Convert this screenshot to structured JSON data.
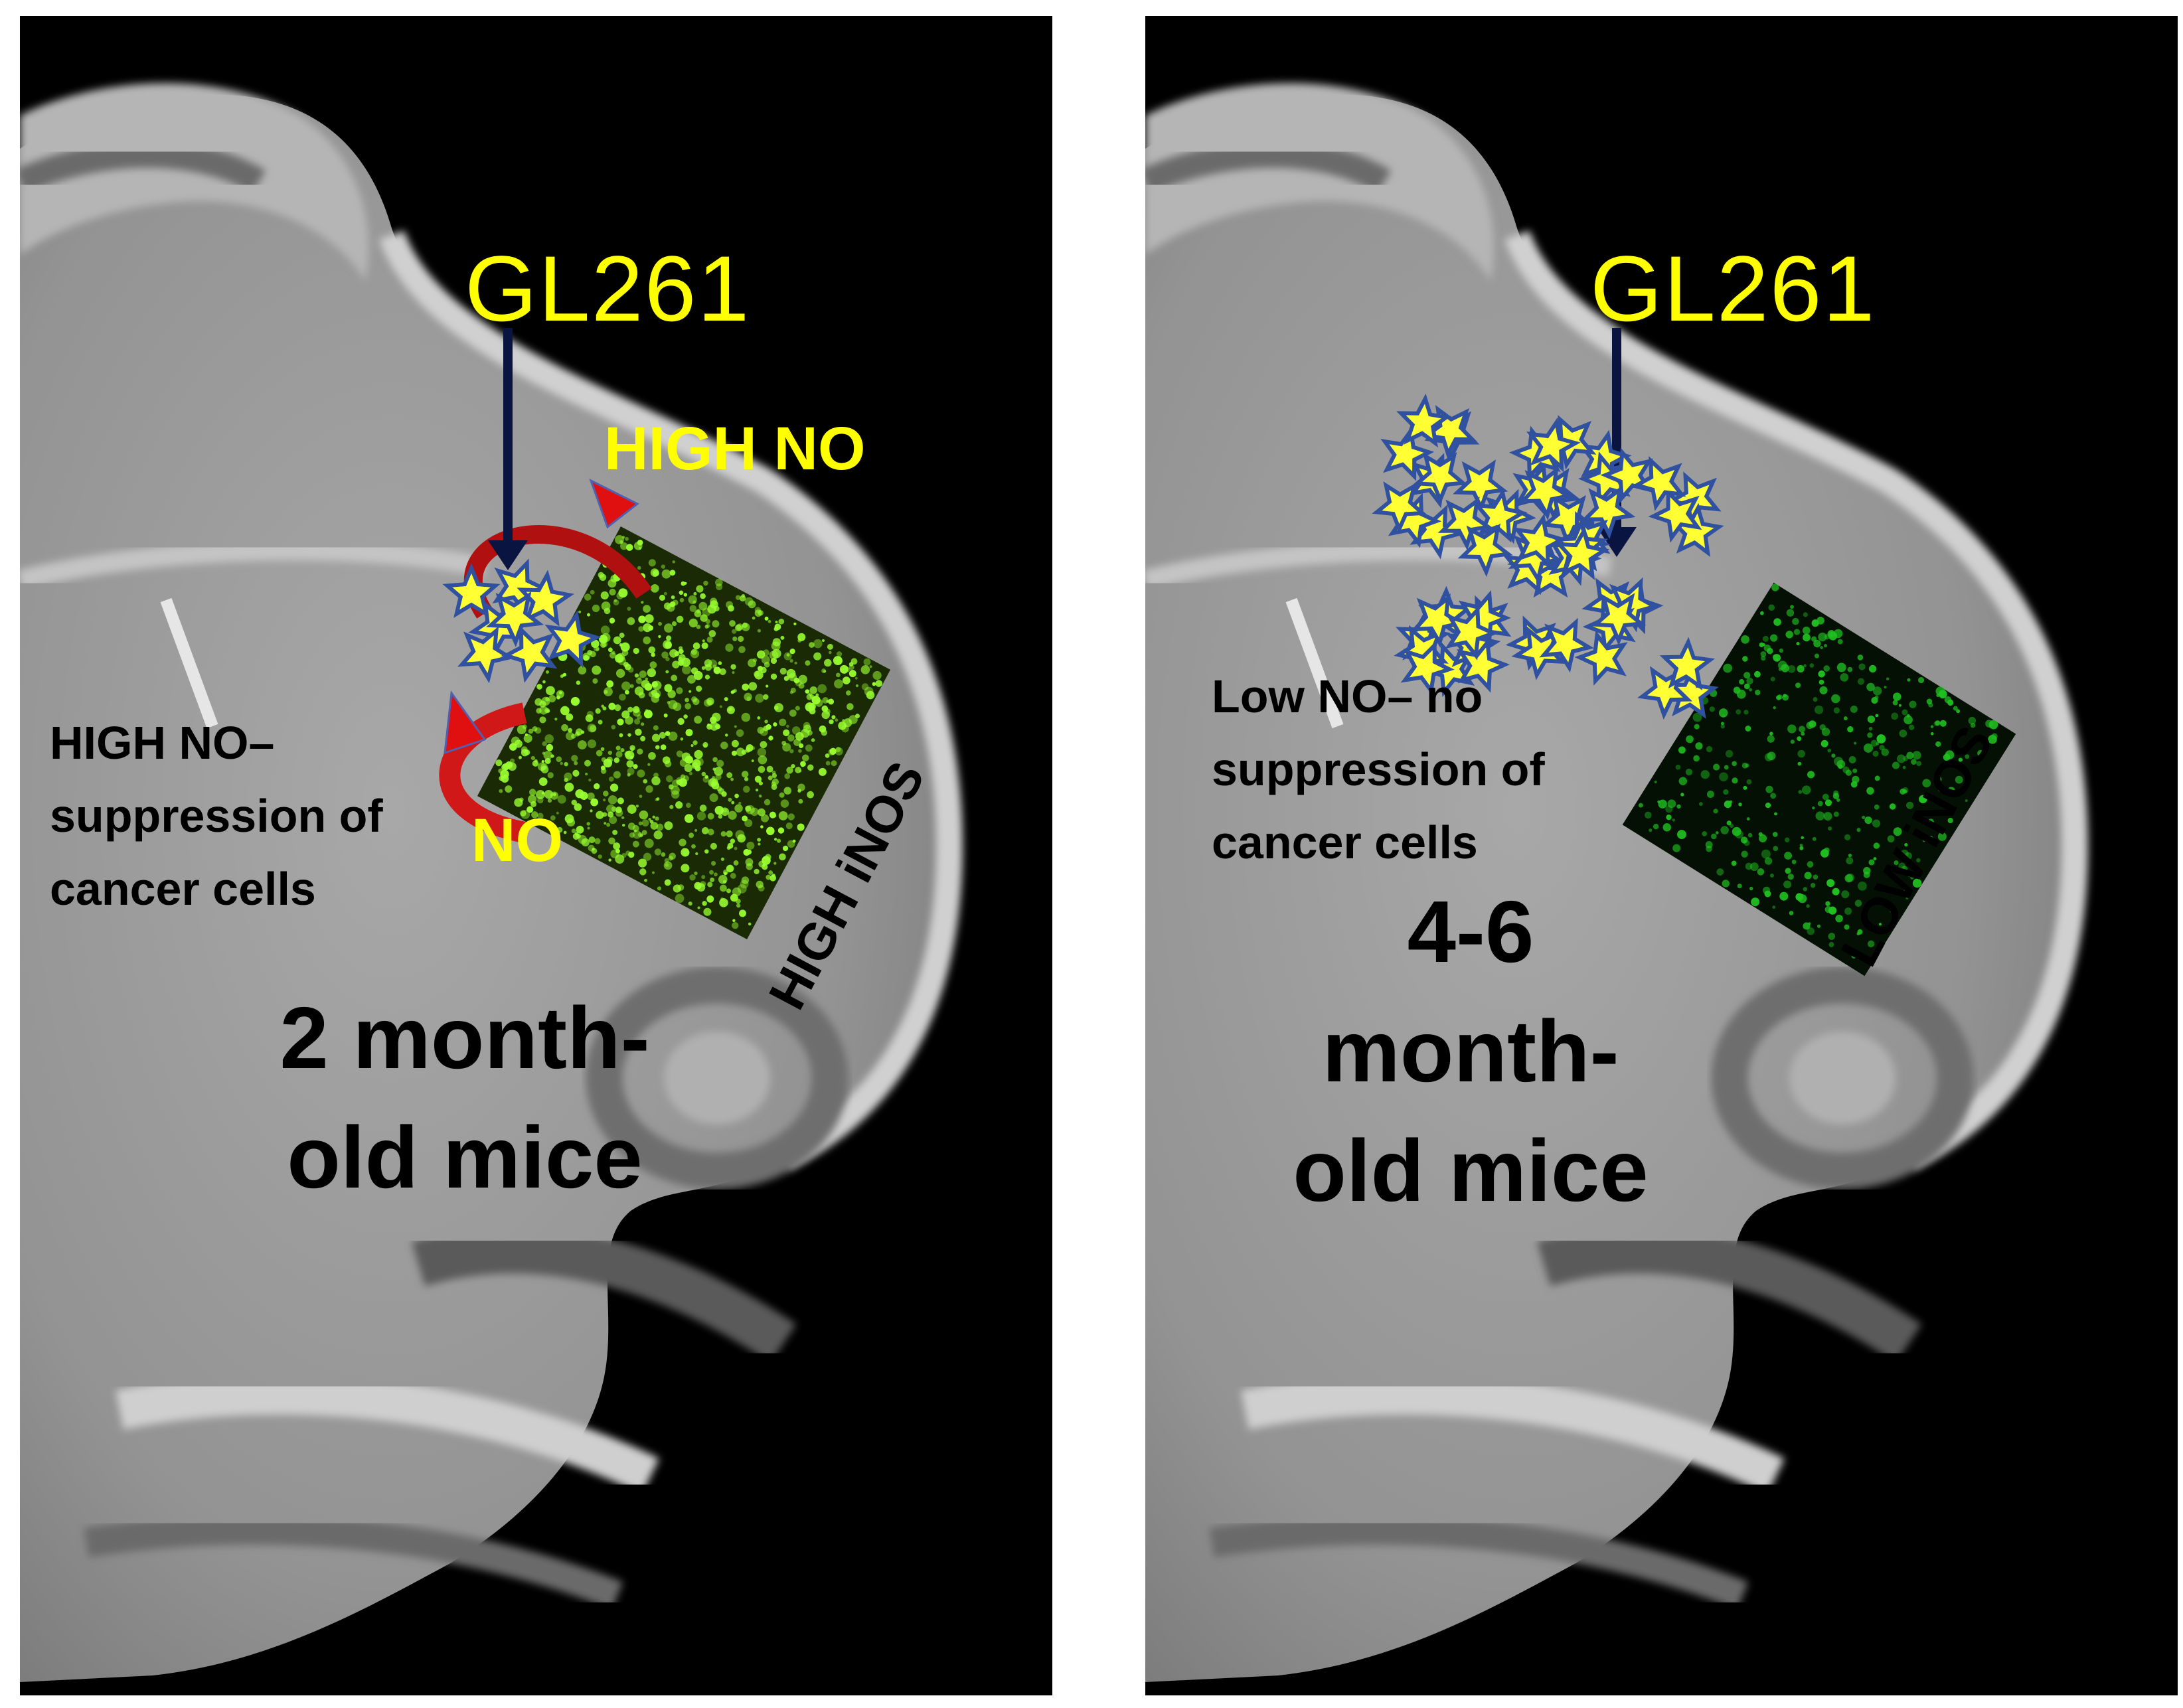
{
  "left_panel": {
    "injection_label": "GL261",
    "high_no_label": "HIGH NO",
    "no_label": "NO",
    "effect_text": [
      "HIGH NO–",
      "suppression of",
      "cancer cells"
    ],
    "inos_label": "HIGH iNOS",
    "age_label": [
      "2 month-",
      "old mice"
    ]
  },
  "right_panel": {
    "injection_label": "GL261",
    "effect_text": [
      "Low NO– no",
      "suppression of",
      "cancer cells"
    ],
    "inos_label": "LOW iNOS",
    "age_label": [
      "4-6",
      "month-",
      "old mice"
    ]
  },
  "colors": {
    "label_yellow": "#ffff00",
    "star_fill": "#ffff33",
    "star_outline": "#3050a0",
    "arrow": "#0a1440",
    "no_cycle_arrow": "#e01010",
    "brain_gray": "#9a9a9a",
    "high_inos_fluorescence": "#9aff30",
    "low_inos_fluorescence": "#20c020"
  }
}
